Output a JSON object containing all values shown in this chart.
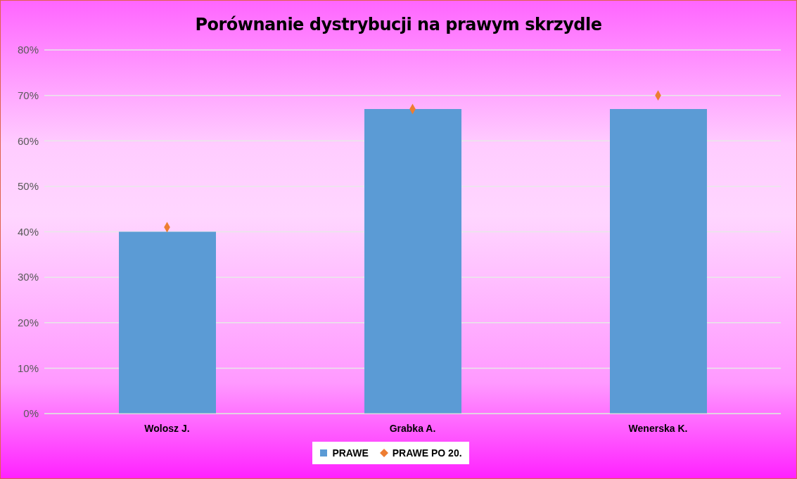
{
  "chart_data": {
    "type": "bar",
    "title": "Porównanie dystrybucji na prawym skrzydle",
    "categories": [
      "Wolosz J.",
      "Grabka A.",
      "Wenerska K."
    ],
    "series": [
      {
        "name": "PRAWE",
        "color": "#5b9bd5",
        "values": [
          0.4,
          0.67,
          0.67
        ]
      },
      {
        "name": "PRAWE PO 20.",
        "type": "scatter",
        "marker": "diamond",
        "color": "#ed7d31",
        "values": [
          0.41,
          0.67,
          0.7
        ]
      }
    ],
    "ylim": [
      0,
      0.8
    ],
    "yticks": [
      {
        "value": 0,
        "label": "0%"
      },
      {
        "value": 0.1,
        "label": "10%"
      },
      {
        "value": 0.2,
        "label": "20%"
      },
      {
        "value": 0.3,
        "label": "30%"
      },
      {
        "value": 0.4,
        "label": "40%"
      },
      {
        "value": 0.5,
        "label": "50%"
      },
      {
        "value": 0.6,
        "label": "60%"
      },
      {
        "value": 0.7,
        "label": "70%"
      },
      {
        "value": 0.8,
        "label": "80%"
      }
    ],
    "grid": "y",
    "legend": "bottom"
  }
}
